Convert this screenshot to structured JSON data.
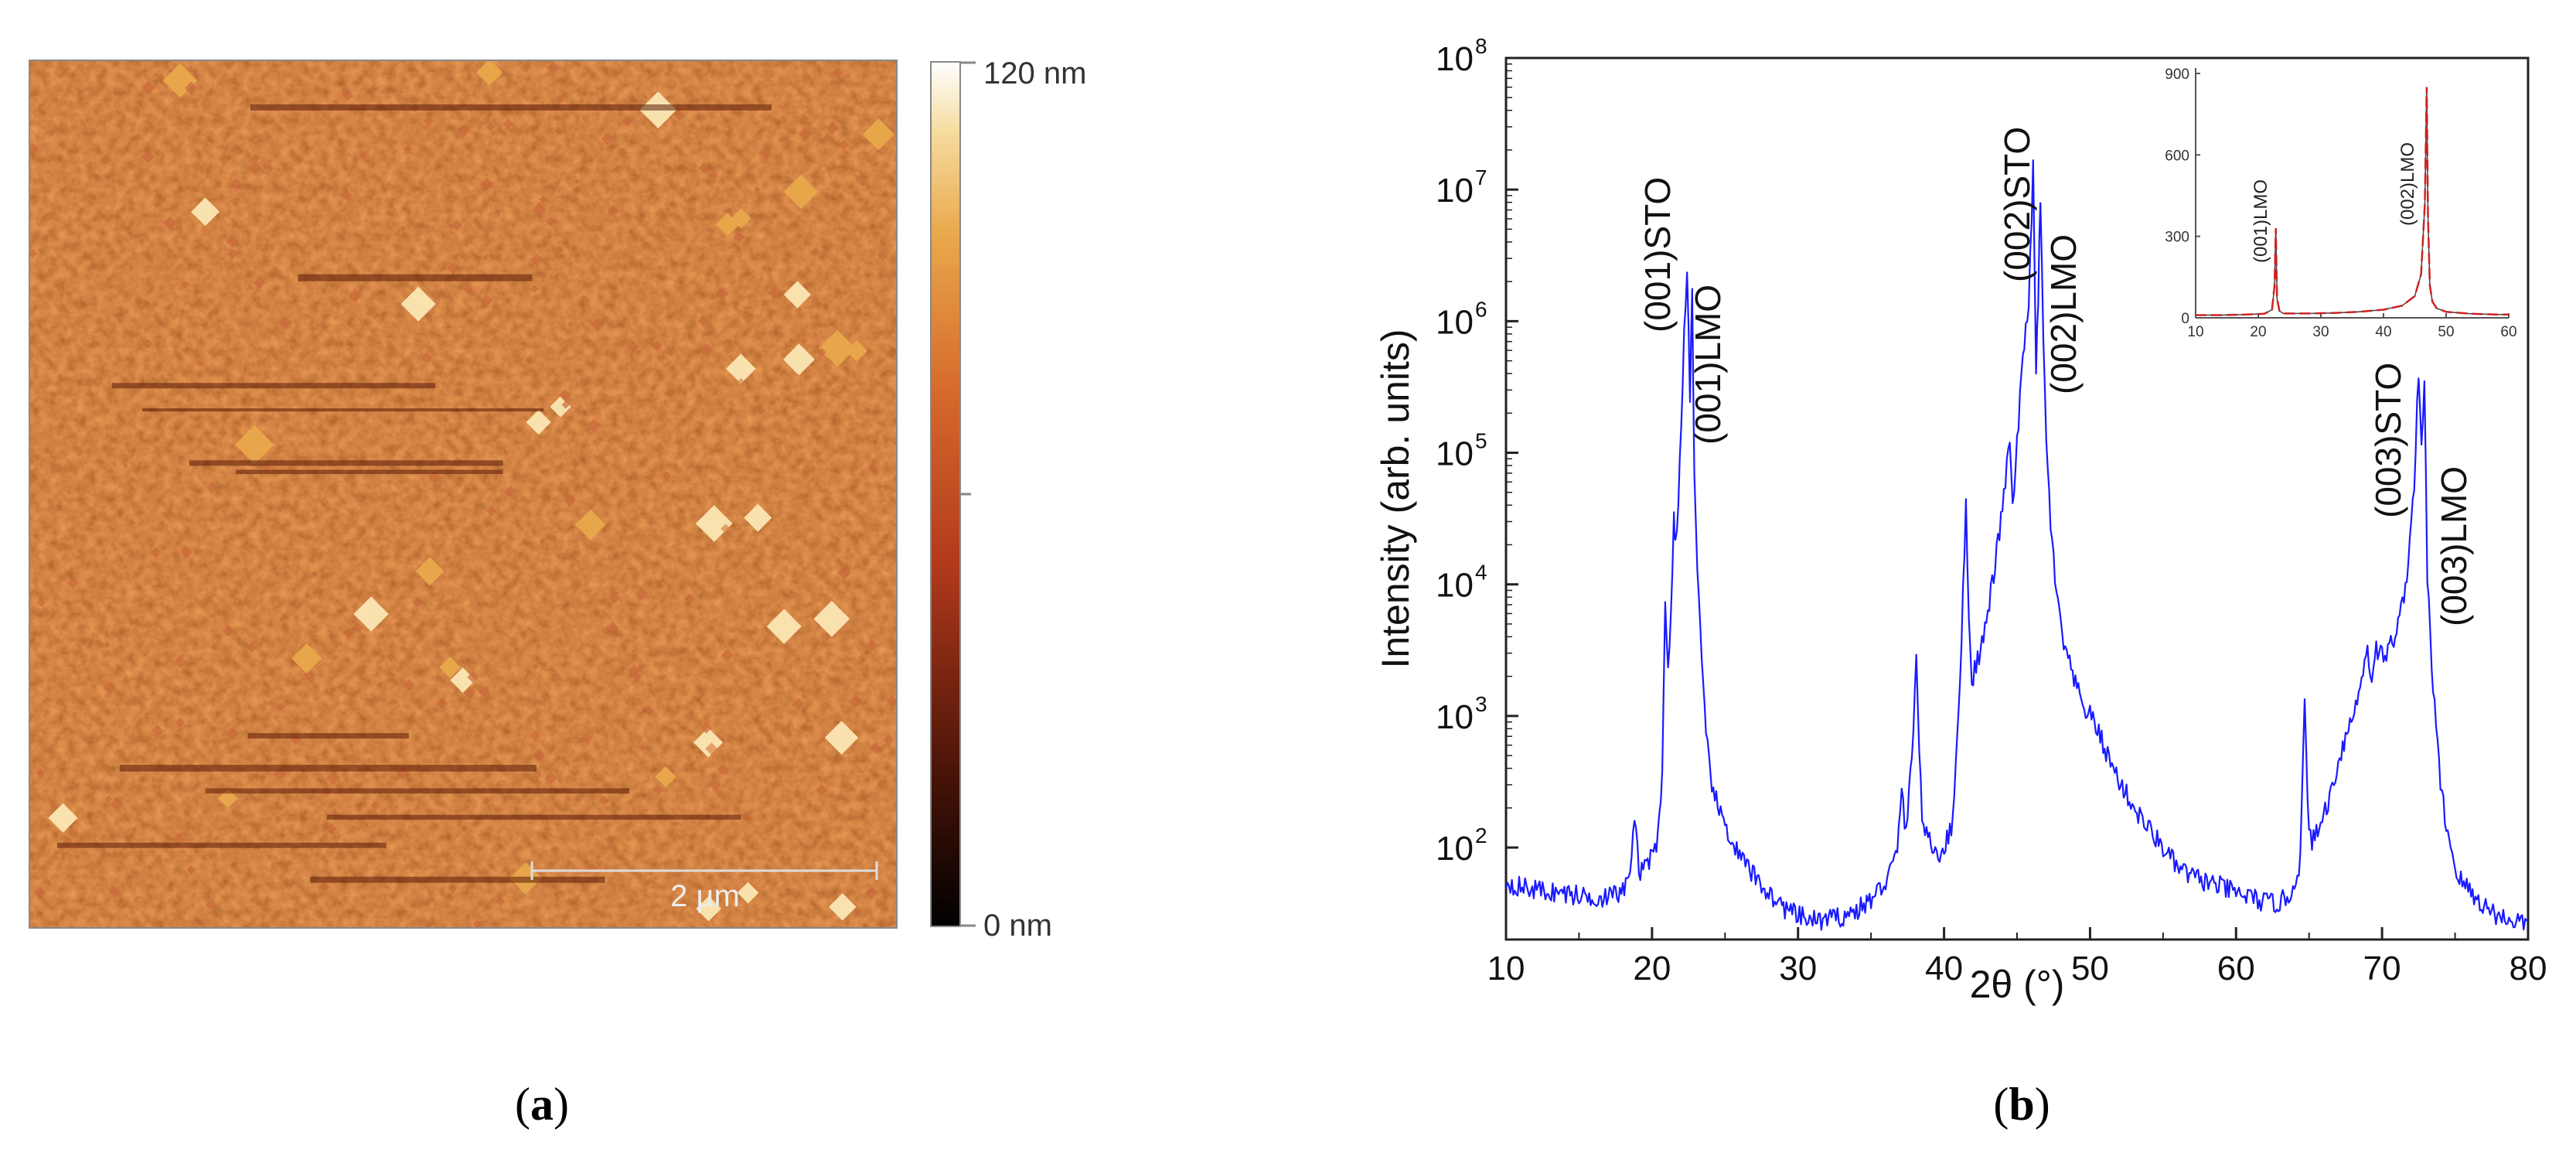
{
  "panel_a": {
    "label_open": "(",
    "label": "a",
    "label_close": ")",
    "colorbar": {
      "max_label": "120 nm",
      "min_label": "0 nm",
      "max": 120,
      "min": 0,
      "unit": "nm"
    },
    "scale_bar_label": "2 µm",
    "colors": {
      "dark": "#000000",
      "mid": "#b23a1c",
      "orange": "#e9a84c",
      "light": "#ffffff",
      "surface": "#a8421a"
    }
  },
  "panel_b": {
    "label_open": "(",
    "label": "b",
    "label_close": ")",
    "colors": {
      "main_line": "#1a1aff",
      "inset_line": "#cc2222",
      "inset_baseline": "#444444"
    }
  },
  "chart_data": [
    {
      "type": "line",
      "title": "",
      "xlabel": "2θ (°)",
      "ylabel": "Intensity (arb. units)",
      "xlim": [
        10,
        80
      ],
      "ylim": [
        20,
        100000000
      ],
      "yscale": "log",
      "xticks": [
        10,
        20,
        30,
        40,
        50,
        60,
        70,
        80
      ],
      "yticks": [
        100,
        1000,
        10000,
        100000,
        1000000,
        10000000,
        100000000
      ],
      "ytick_labels": [
        "10",
        "10",
        "10",
        "10",
        "10",
        "10",
        "10"
      ],
      "ytick_exponents": [
        "2",
        "3",
        "4",
        "5",
        "6",
        "7",
        "8"
      ],
      "grid": false,
      "series": [
        {
          "x": [
            10,
            11,
            12,
            13,
            14,
            15,
            16,
            17,
            17.8,
            18.4,
            18.8,
            19.2,
            19.6,
            20.0,
            20.4,
            20.7,
            20.9,
            21.1,
            21.3,
            21.5,
            21.6,
            21.8,
            22.0,
            22.2,
            22.4,
            22.6,
            22.75,
            22.9,
            23.1,
            23.4,
            23.7,
            24.0,
            24.5,
            25,
            25.5,
            26,
            27,
            28,
            29,
            30,
            31,
            32,
            33,
            34,
            35,
            36,
            36.8,
            37.1,
            37.4,
            37.8,
            38.1,
            38.3,
            38.5,
            38.8,
            39.2,
            39.6,
            40,
            40.5,
            40.9,
            41.2,
            41.5,
            41.7,
            41.9,
            42.2,
            42.6,
            43.0,
            43.4,
            43.8,
            44.2,
            44.5,
            44.7,
            45.0,
            45.4,
            45.8,
            46.1,
            46.3,
            46.45,
            46.6,
            46.8,
            47.0,
            47.3,
            47.7,
            48.2,
            48.8,
            49.5,
            50.3,
            50.8,
            51.2,
            52,
            53,
            54,
            55,
            56,
            57,
            58,
            59,
            60,
            61,
            62,
            63,
            63.8,
            64.4,
            64.7,
            64.9,
            65.2,
            65.6,
            66,
            66.5,
            67,
            67.5,
            68,
            68.5,
            68.8,
            69.0,
            69.2,
            69.4,
            69.6,
            69.8,
            70.2,
            70.6,
            71,
            71.4,
            71.8,
            72.2,
            72.5,
            72.7,
            72.9,
            73.1,
            73.4,
            73.7,
            74.0,
            74.4,
            74.8,
            75.2,
            75.8,
            76.5,
            77.2,
            78,
            79,
            80
          ],
          "y": [
            55,
            50,
            48,
            46,
            45,
            43,
            42,
            42,
            45,
            55,
            150,
            60,
            85,
            80,
            120,
            400,
            8000,
            2000,
            6000,
            35000,
            20000,
            40000,
            150000,
            800000,
            2800000,
            250000,
            1800000,
            70000,
            12000,
            2500,
            700,
            350,
            200,
            150,
            110,
            85,
            60,
            45,
            35,
            30,
            28,
            28,
            30,
            33,
            40,
            55,
            90,
            300,
            120,
            500,
            3000,
            500,
            180,
            120,
            100,
            90,
            100,
            140,
            600,
            4000,
            40000,
            6000,
            1800,
            2500,
            3500,
            6000,
            12000,
            25000,
            60000,
            130000,
            35000,
            120000,
            500000,
            1500000,
            14000000,
            400000,
            1500000,
            9000000,
            700000,
            120000,
            30000,
            8000,
            3500,
            2000,
            1200,
            900,
            650,
            500,
            320,
            200,
            140,
            100,
            70,
            60,
            55,
            50,
            45,
            42,
            38,
            38,
            45,
            80,
            1300,
            200,
            110,
            130,
            180,
            260,
            450,
            700,
            1000,
            1600,
            2800,
            3500,
            1800,
            2500,
            3200,
            3000,
            2800,
            3500,
            4500,
            7000,
            15000,
            60000,
            400000,
            100000,
            350000,
            12000,
            2500,
            800,
            300,
            150,
            90,
            60,
            50,
            40,
            35,
            30,
            28,
            27
          ]
        }
      ],
      "annotations": [
        "(001)STO",
        "(001)LMO",
        "(002)STO",
        "(002)LMO",
        "(003)STO",
        "(003)LMO"
      ]
    },
    {
      "type": "line",
      "title": "",
      "xlabel": "",
      "ylabel": "",
      "xlim": [
        10,
        60
      ],
      "ylim": [
        0,
        900
      ],
      "yscale": "linear",
      "xticks": [
        10,
        20,
        30,
        40,
        50,
        60
      ],
      "xtick_labels": [
        "10",
        "20",
        "30",
        "40",
        "50",
        "60"
      ],
      "yticks": [
        0,
        300,
        600,
        900
      ],
      "ytick_labels": [
        "0",
        "300",
        "600",
        "900"
      ],
      "grid": false,
      "series": [
        {
          "x": [
            10,
            14,
            18,
            21,
            22.2,
            22.6,
            22.8,
            23.0,
            23.4,
            24,
            28,
            32,
            36,
            40,
            43,
            45,
            46,
            46.6,
            46.9,
            47.1,
            47.4,
            47.8,
            48.5,
            50,
            54,
            58,
            60
          ],
          "y": [
            10,
            10,
            12,
            15,
            30,
            120,
            330,
            70,
            25,
            16,
            16,
            18,
            22,
            30,
            45,
            80,
            160,
            420,
            850,
            380,
            120,
            60,
            35,
            22,
            15,
            12,
            12
          ]
        }
      ],
      "annotations": [
        "(001)LMO",
        "(002)LMO"
      ]
    }
  ]
}
